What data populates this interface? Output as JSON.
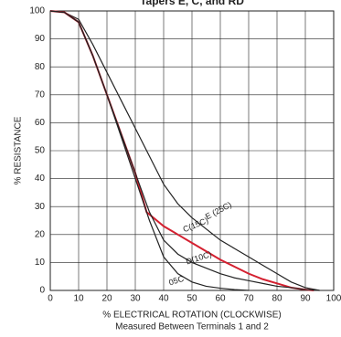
{
  "chart_data": {
    "type": "line",
    "title": "Tapers E, C, and RD",
    "xlabel": "% ELECTRICAL ROTATION (CLOCKWISE)",
    "subtitle": "Measured Between Terminals 1 and 2",
    "ylabel": "% RESISTANCE",
    "xlim": [
      0,
      100
    ],
    "ylim": [
      0,
      100
    ],
    "xticks": [
      0,
      10,
      20,
      30,
      40,
      50,
      60,
      70,
      80,
      90,
      100
    ],
    "yticks": [
      0,
      10,
      20,
      30,
      40,
      50,
      60,
      70,
      80,
      90,
      100
    ],
    "grid": true,
    "series": [
      {
        "name": "E (25C)",
        "color": "#222222",
        "x": [
          0,
          5,
          10,
          15,
          20,
          25,
          30,
          35,
          40,
          45,
          50,
          55,
          60,
          65,
          70,
          75,
          80,
          85,
          90,
          95
        ],
        "values": [
          100,
          99.5,
          97,
          88,
          78,
          68,
          58,
          48,
          38,
          31,
          26,
          22,
          18,
          15,
          12,
          9,
          6,
          3,
          1,
          0
        ]
      },
      {
        "name": "C(15C)",
        "color": "#d42030",
        "x": [
          0,
          5,
          10,
          15,
          20,
          25,
          30,
          34,
          40,
          45,
          50,
          55,
          60,
          65,
          70,
          75,
          80,
          85,
          90,
          93
        ],
        "values": [
          100,
          99.5,
          96,
          84,
          70,
          56,
          42,
          28,
          23,
          20,
          17,
          14,
          11,
          8.5,
          6,
          4,
          2.5,
          1,
          0.3,
          0
        ]
      },
      {
        "name": "D(10C)",
        "color": "#222222",
        "x": [
          0,
          5,
          10,
          15,
          20,
          25,
          30,
          35,
          40,
          45,
          50,
          55,
          60,
          65,
          70,
          75,
          80,
          85,
          90,
          95
        ],
        "values": [
          100,
          99.5,
          96,
          84,
          70,
          56,
          42,
          28,
          18,
          13,
          10,
          8,
          6,
          4.5,
          3.5,
          2.5,
          1.5,
          1,
          0.3,
          0
        ]
      },
      {
        "name": "05C",
        "color": "#222222",
        "x": [
          0,
          5,
          10,
          15,
          20,
          25,
          30,
          35,
          40,
          45,
          50,
          55,
          60,
          65,
          70
        ],
        "values": [
          100,
          99.5,
          96,
          84,
          70,
          55,
          40,
          25,
          12,
          6,
          3,
          1.5,
          0.8,
          0.3,
          0
        ]
      }
    ]
  }
}
